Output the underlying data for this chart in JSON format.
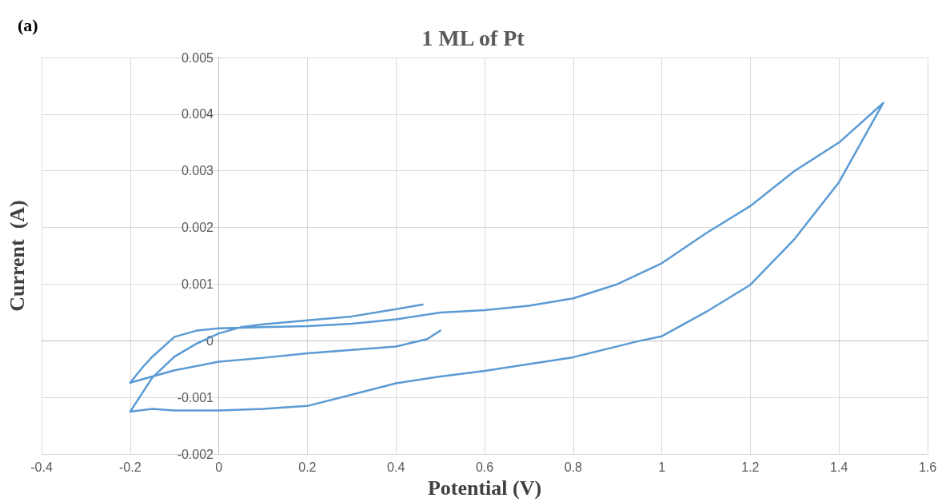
{
  "chart_data": {
    "type": "line",
    "title": "1 ML of Pt",
    "xlabel": "Potential (V)",
    "ylabel": "Current  (A)",
    "annotations": [
      "(a)"
    ],
    "series": [
      {
        "color": "#5b9bd5",
        "x": [
          0.5,
          0.47,
          0.4,
          0.3,
          0.2,
          0.1,
          0,
          -0.1,
          -0.2,
          -0.17,
          -0.15,
          -0.1,
          -0.05,
          0,
          0.1,
          0.2,
          0.3,
          0.4,
          0.5,
          0.6,
          0.7,
          0.8,
          0.9,
          1.0,
          1.1,
          1.2,
          1.3,
          1.4,
          1.5,
          1.4,
          1.3,
          1.2,
          1.1,
          1.0,
          0.95,
          0.8,
          0.6,
          0.5,
          0.4,
          0.3,
          0.2,
          0.1,
          0,
          -0.1,
          -0.15,
          -0.2,
          -0.15,
          -0.1,
          -0.05,
          0,
          0.05,
          0.1,
          0.2,
          0.3,
          0.4,
          0.46
        ],
        "values": [
          0.00018,
          3e-05,
          -0.0001,
          -0.00016,
          -0.00022,
          -0.0003,
          -0.00037,
          -0.00052,
          -0.00074,
          -0.00045,
          -0.00028,
          7e-05,
          0.00018,
          0.00022,
          0.00024,
          0.00026,
          0.0003,
          0.00038,
          0.0005,
          0.00054,
          0.00062,
          0.00075,
          0.001,
          0.00137,
          0.0019,
          0.00238,
          0.003,
          0.0035,
          0.0042,
          0.0028,
          0.0018,
          0.00099,
          0.00051,
          8e-05,
          0,
          -0.00029,
          -0.00053,
          -0.00063,
          -0.00075,
          -0.00095,
          -0.00115,
          -0.0012,
          -0.00123,
          -0.00123,
          -0.0012,
          -0.00125,
          -0.00065,
          -0.00028,
          -5e-05,
          0.00013,
          0.00024,
          0.00029,
          0.00036,
          0.00043,
          0.00056,
          0.00064
        ]
      }
    ],
    "xlim": [
      -0.4,
      1.6
    ],
    "xticks": [
      -0.4,
      -0.2,
      0,
      0.2,
      0.4,
      0.6,
      0.8,
      1,
      1.2,
      1.4,
      1.6
    ],
    "ylim": [
      -0.002,
      0.005
    ],
    "yticks": [
      -0.002,
      -0.001,
      0,
      0.001,
      0.002,
      0.003,
      0.004,
      0.005
    ],
    "grid": true,
    "marker": "none",
    "line_style": "solid"
  }
}
